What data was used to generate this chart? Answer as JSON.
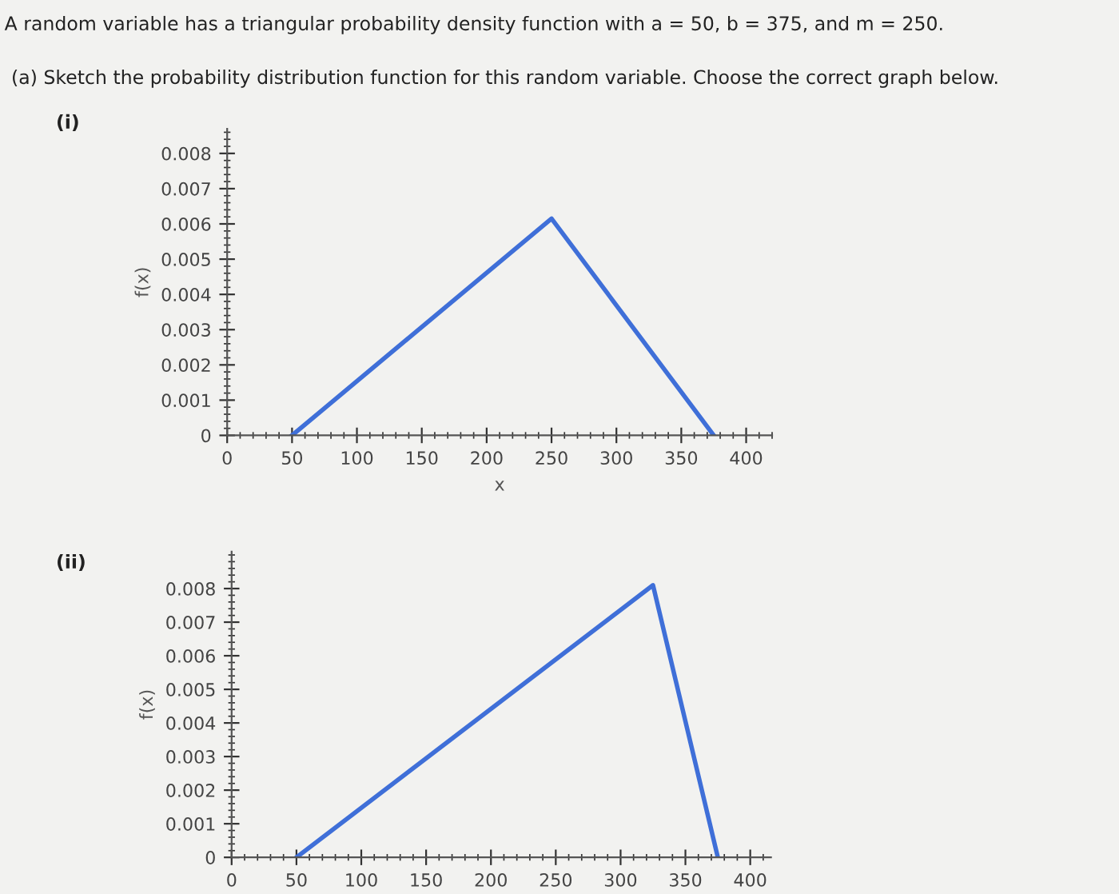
{
  "chart_data": [
    {
      "type": "line",
      "xlabel": "x",
      "ylabel": "f(x)",
      "annotations": [
        "A random variable has a triangular probability density function with a = 50, b = 375, and m = 250.",
        "(a) Sketch the probability distribution function for this random variable. Choose the correct graph below.",
        "(i)"
      ],
      "x": [
        50,
        250,
        375
      ],
      "series": [
        {
          "color": "#3f6fd8",
          "values": [
            0,
            0.00615,
            0
          ]
        }
      ],
      "xlim": [
        0,
        420
      ],
      "ylim": [
        0,
        0.0087
      ],
      "xticks": [
        0,
        50,
        100,
        150,
        200,
        250,
        300,
        350,
        400
      ],
      "yticks": [
        0,
        0.001,
        0.002,
        0.003,
        0.004,
        0.005,
        0.006,
        0.007,
        0.008
      ],
      "grid": false,
      "marker": "none",
      "line_style": "solid"
    },
    {
      "type": "line",
      "ylabel": "f(x)",
      "annotations": [
        "(ii)"
      ],
      "x": [
        50,
        325,
        375
      ],
      "series": [
        {
          "color": "#3f6fd8",
          "values": [
            0,
            0.0081,
            0
          ]
        }
      ],
      "xlim": [
        0,
        416
      ],
      "ylim": [
        0,
        0.0091
      ],
      "xticks": [
        0,
        50,
        100,
        150,
        200,
        250,
        300,
        350,
        400
      ],
      "yticks": [
        0,
        0.001,
        0.002,
        0.003,
        0.004,
        0.005,
        0.006,
        0.007,
        0.008
      ],
      "grid": false,
      "marker": "none",
      "line_style": "solid"
    }
  ]
}
